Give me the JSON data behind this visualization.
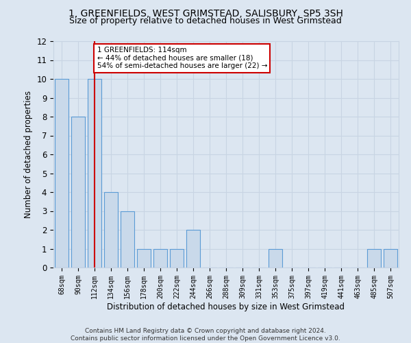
{
  "title": "1, GREENFIELDS, WEST GRIMSTEAD, SALISBURY, SP5 3SH",
  "subtitle": "Size of property relative to detached houses in West Grimstead",
  "xlabel": "Distribution of detached houses by size in West Grimstead",
  "ylabel": "Number of detached properties",
  "footer_line1": "Contains HM Land Registry data © Crown copyright and database right 2024.",
  "footer_line2": "Contains public sector information licensed under the Open Government Licence v3.0.",
  "categories": [
    "68sqm",
    "90sqm",
    "112sqm",
    "134sqm",
    "156sqm",
    "178sqm",
    "200sqm",
    "222sqm",
    "244sqm",
    "266sqm",
    "288sqm",
    "309sqm",
    "331sqm",
    "353sqm",
    "375sqm",
    "397sqm",
    "419sqm",
    "441sqm",
    "463sqm",
    "485sqm",
    "507sqm"
  ],
  "values": [
    10,
    8,
    10,
    4,
    3,
    1,
    1,
    1,
    2,
    0,
    0,
    0,
    0,
    1,
    0,
    0,
    0,
    0,
    0,
    1,
    1
  ],
  "bar_color": "#c9d9ea",
  "bar_edge_color": "#5b9bd5",
  "reference_line_index": 2,
  "reference_line_color": "#cc0000",
  "ylim": [
    0,
    12
  ],
  "yticks": [
    0,
    1,
    2,
    3,
    4,
    5,
    6,
    7,
    8,
    9,
    10,
    11,
    12
  ],
  "annotation_line1": "1 GREENFIELDS: 114sqm",
  "annotation_line2": "← 44% of detached houses are smaller (18)",
  "annotation_line3": "54% of semi-detached houses are larger (22) →",
  "annotation_box_color": "#ffffff",
  "annotation_box_edge_color": "#cc0000",
  "grid_color": "#c8d4e3",
  "background_color": "#dce6f1",
  "title_fontsize": 10,
  "subtitle_fontsize": 9
}
